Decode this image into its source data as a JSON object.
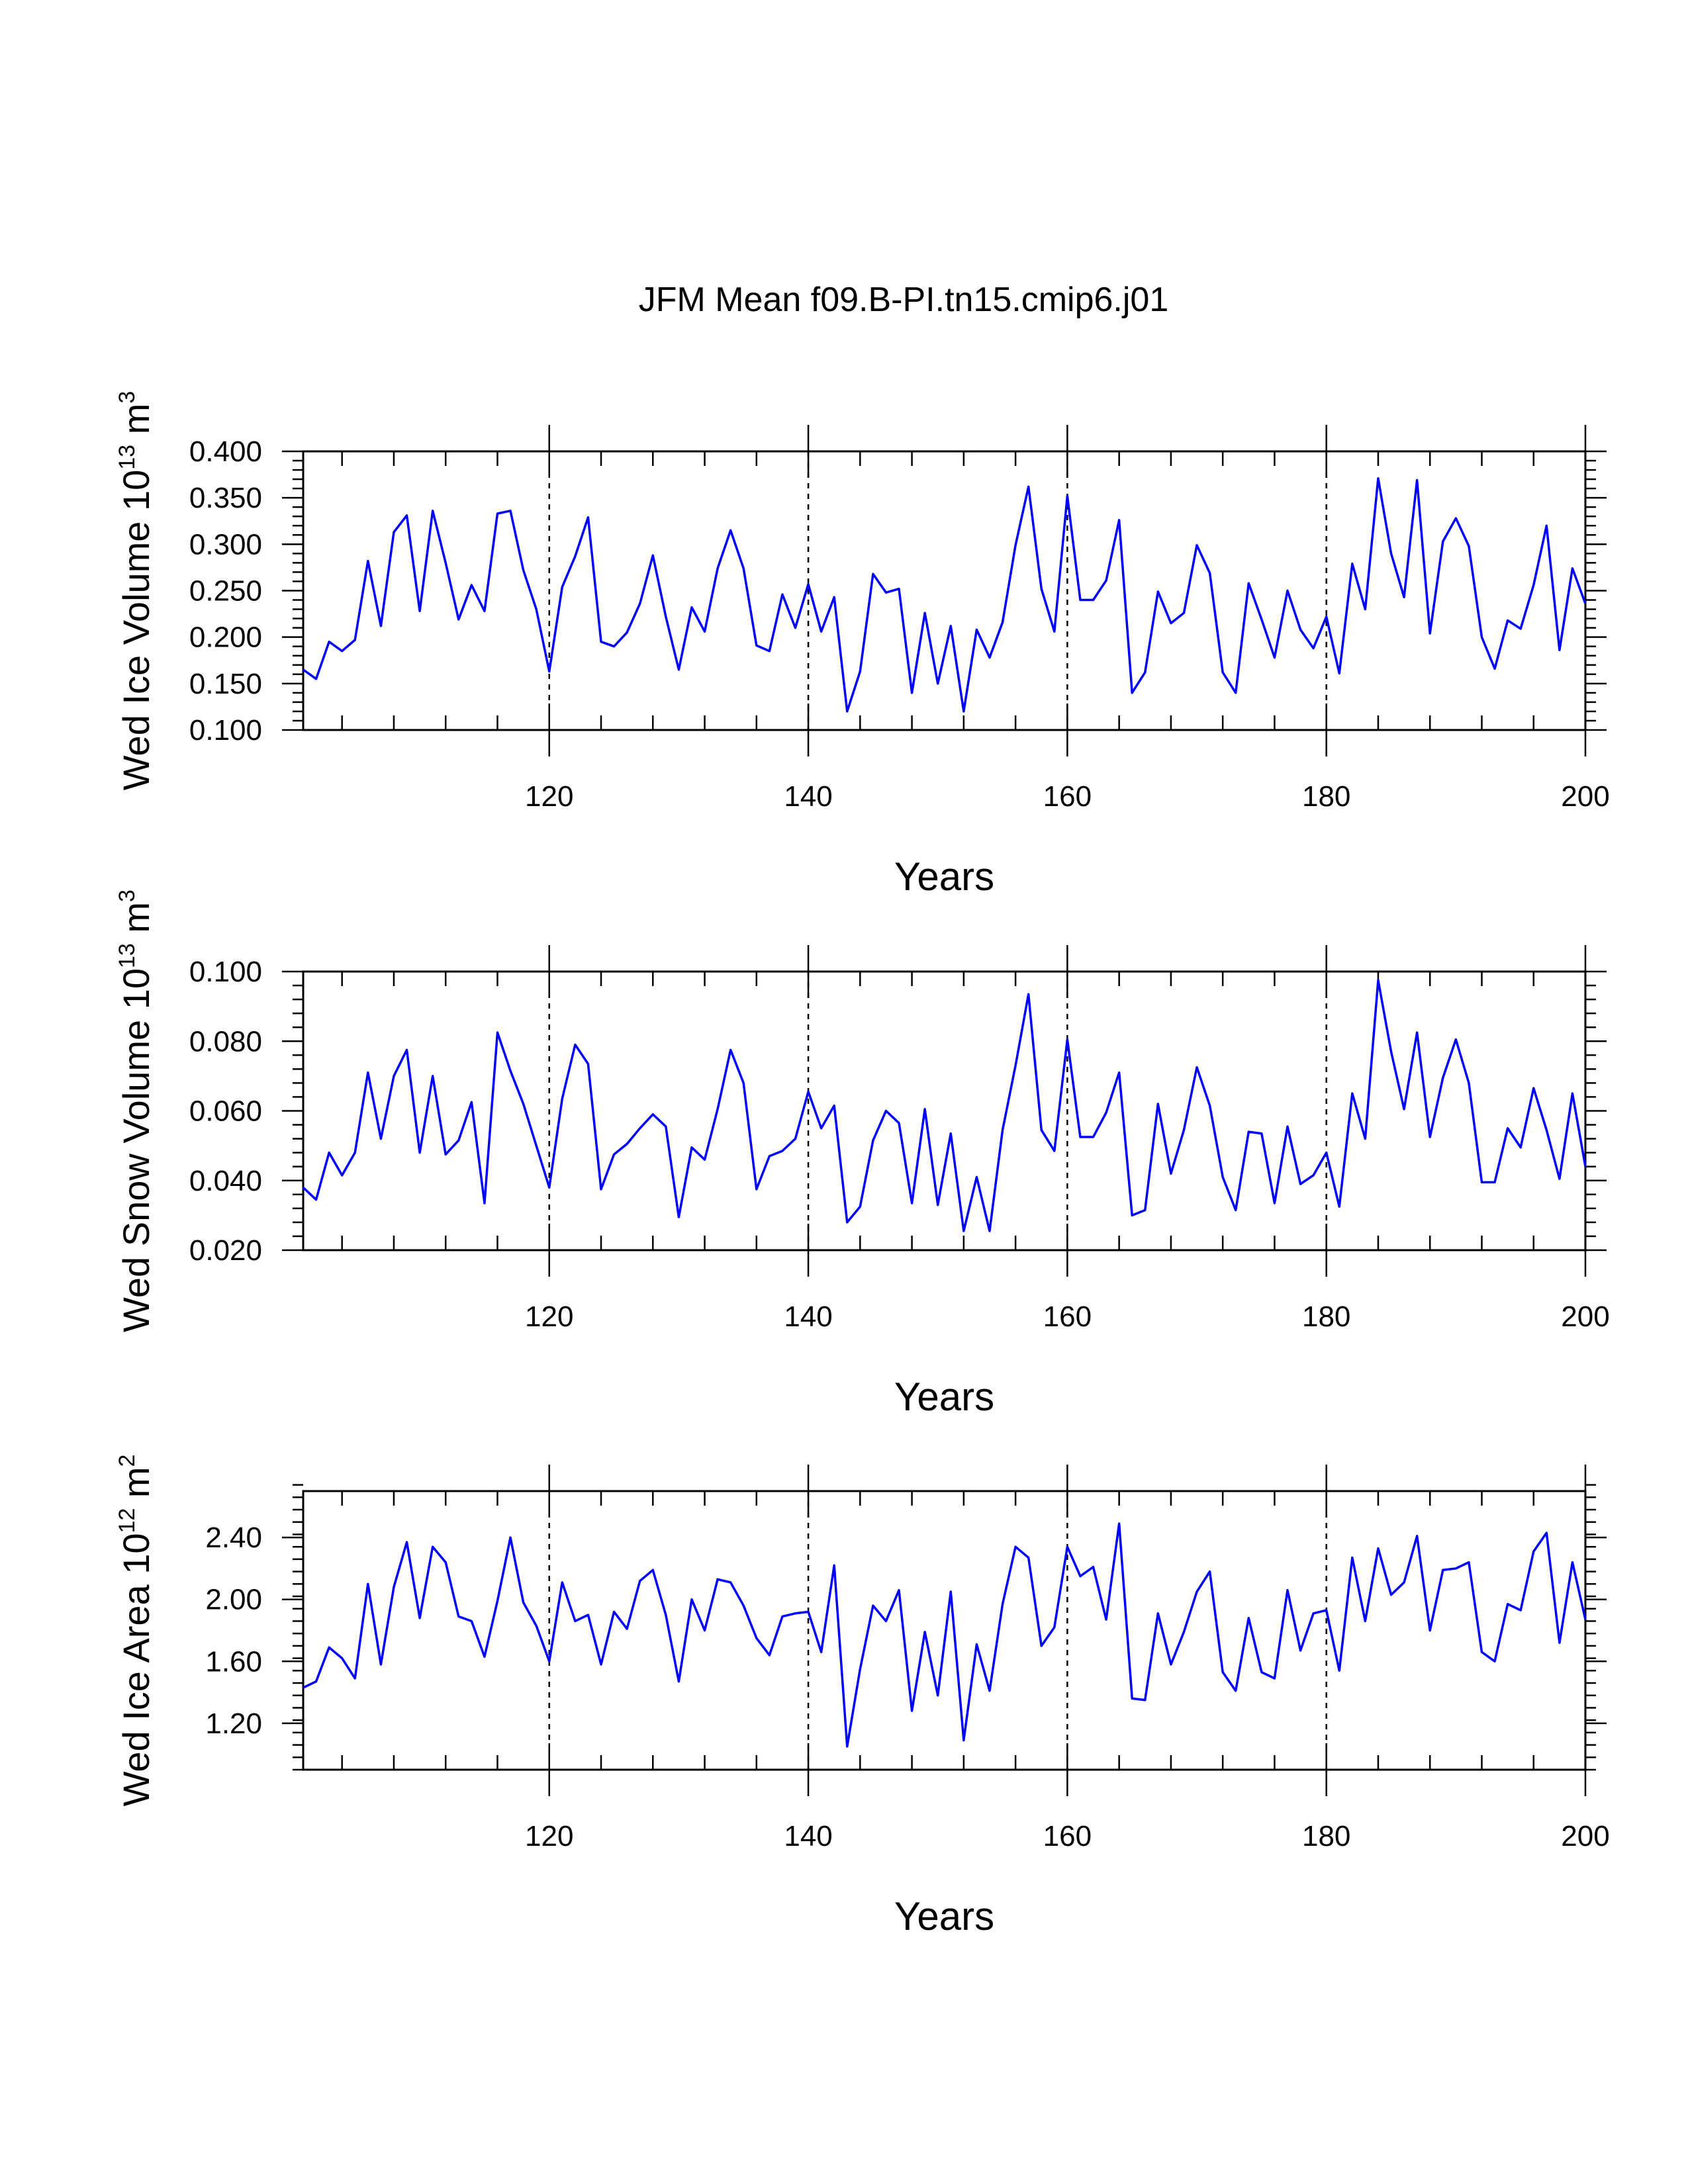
{
  "title": "JFM Mean f09.B-PI.tn15.cmip6.j01",
  "colors": {
    "line": "#0000ff",
    "axes": "#000000",
    "background": "#ffffff"
  },
  "chart_data": [
    {
      "id": "ice-volume",
      "type": "line",
      "ylabel_main": "Wed Ice Volume 10",
      "ylabel_exp": "13",
      "ylabel_unit": " m",
      "ylabel_unit_exp": "3",
      "xlabel": "Years",
      "xlim": [
        101,
        200
      ],
      "ylim": [
        0.1,
        0.4
      ],
      "yticks": [
        0.1,
        0.15,
        0.2,
        0.25,
        0.3,
        0.35,
        0.4
      ],
      "ytick_labels": [
        "0.100",
        "0.150",
        "0.200",
        "0.250",
        "0.300",
        "0.350",
        "0.400"
      ],
      "yminor_step": 0.01,
      "xticks": [
        120,
        140,
        160,
        180,
        200
      ],
      "xtick_labels": [
        "120",
        "140",
        "160",
        "180",
        "200"
      ],
      "xminor_step": 4,
      "vlines": [
        120,
        140,
        160,
        180
      ],
      "x_start": 101,
      "series": [
        {
          "name": "Wed Ice Volume",
          "values": [
            0.165,
            0.155,
            0.195,
            0.185,
            0.197,
            0.282,
            0.212,
            0.313,
            0.331,
            0.228,
            0.336,
            0.28,
            0.219,
            0.256,
            0.228,
            0.333,
            0.336,
            0.272,
            0.23,
            0.163,
            0.254,
            0.287,
            0.329,
            0.195,
            0.19,
            0.205,
            0.236,
            0.288,
            0.222,
            0.165,
            0.232,
            0.206,
            0.274,
            0.315,
            0.274,
            0.191,
            0.185,
            0.246,
            0.21,
            0.257,
            0.206,
            0.243,
            0.12,
            0.163,
            0.268,
            0.248,
            0.252,
            0.14,
            0.226,
            0.15,
            0.212,
            0.12,
            0.208,
            0.178,
            0.216,
            0.299,
            0.362,
            0.252,
            0.206,
            0.352,
            0.24,
            0.24,
            0.261,
            0.326,
            0.14,
            0.162,
            0.249,
            0.215,
            0.226,
            0.299,
            0.269,
            0.162,
            0.14,
            0.258,
            0.219,
            0.178,
            0.25,
            0.208,
            0.188,
            0.222,
            0.161,
            0.279,
            0.23,
            0.371,
            0.29,
            0.243,
            0.369,
            0.204,
            0.303,
            0.328,
            0.298,
            0.2,
            0.166,
            0.218,
            0.209,
            0.256,
            0.32,
            0.186,
            0.274,
            0.236
          ]
        }
      ]
    },
    {
      "id": "snow-volume",
      "type": "line",
      "ylabel_main": "Wed Snow Volume 10",
      "ylabel_exp": "13",
      "ylabel_unit": " m",
      "ylabel_unit_exp": "3",
      "xlabel": "Years",
      "xlim": [
        101,
        200
      ],
      "ylim": [
        0.02,
        0.1
      ],
      "yticks": [
        0.02,
        0.04,
        0.06,
        0.08,
        0.1
      ],
      "ytick_labels": [
        "0.020",
        "0.040",
        "0.060",
        "0.080",
        "0.100"
      ],
      "yminor_step": 0.004,
      "xticks": [
        120,
        140,
        160,
        180,
        200
      ],
      "xtick_labels": [
        "120",
        "140",
        "160",
        "180",
        "200"
      ],
      "xminor_step": 4,
      "vlines": [
        120,
        140,
        160,
        180
      ],
      "x_start": 101,
      "series": [
        {
          "name": "Wed Snow Volume",
          "values": [
            0.038,
            0.0345,
            0.048,
            0.0415,
            0.048,
            0.071,
            0.052,
            0.07,
            0.0775,
            0.048,
            0.07,
            0.0475,
            0.0515,
            0.0625,
            0.0335,
            0.0825,
            0.0715,
            0.062,
            0.05,
            0.038,
            0.0635,
            0.079,
            0.0735,
            0.0375,
            0.0475,
            0.0505,
            0.055,
            0.059,
            0.0555,
            0.0295,
            0.0495,
            0.046,
            0.0605,
            0.0775,
            0.068,
            0.0375,
            0.047,
            0.0485,
            0.052,
            0.0655,
            0.055,
            0.0615,
            0.028,
            0.0325,
            0.0515,
            0.06,
            0.0565,
            0.0335,
            0.0605,
            0.033,
            0.0535,
            0.0255,
            0.041,
            0.0255,
            0.0545,
            0.073,
            0.0935,
            0.0545,
            0.0485,
            0.0805,
            0.0525,
            0.0525,
            0.0595,
            0.071,
            0.03,
            0.0315,
            0.062,
            0.042,
            0.0545,
            0.0725,
            0.0615,
            0.041,
            0.0315,
            0.054,
            0.0535,
            0.0335,
            0.0555,
            0.039,
            0.0415,
            0.048,
            0.0325,
            0.065,
            0.052,
            0.0975,
            0.077,
            0.0605,
            0.0825,
            0.0525,
            0.0695,
            0.0805,
            0.068,
            0.0395,
            0.0395,
            0.055,
            0.0495,
            0.0665,
            0.0545,
            0.0405,
            0.065,
            0.044
          ]
        }
      ]
    },
    {
      "id": "ice-area",
      "type": "line",
      "ylabel_main": "Wed Ice Area 10",
      "ylabel_exp": "12",
      "ylabel_unit": " m",
      "ylabel_unit_exp": "2",
      "xlabel": "Years",
      "xlim": [
        101,
        200
      ],
      "ylim": [
        0.9,
        2.7
      ],
      "yticks": [
        1.2,
        1.6,
        2.0,
        2.4
      ],
      "ytick_labels": [
        "1.20",
        "1.60",
        "2.00",
        "2.40"
      ],
      "yminor_step": 0.08,
      "xticks": [
        120,
        140,
        160,
        180,
        200
      ],
      "xtick_labels": [
        "120",
        "140",
        "160",
        "180",
        "200"
      ],
      "xminor_step": 4,
      "vlines": [
        120,
        140,
        160,
        180
      ],
      "x_start": 101,
      "series": [
        {
          "name": "Wed Ice Area",
          "values": [
            1.43,
            1.47,
            1.69,
            1.62,
            1.49,
            2.1,
            1.58,
            2.08,
            2.37,
            1.88,
            2.34,
            2.24,
            1.89,
            1.86,
            1.63,
            1.99,
            2.4,
            1.98,
            1.83,
            1.6,
            2.11,
            1.86,
            1.9,
            1.58,
            1.92,
            1.81,
            2.12,
            2.19,
            1.9,
            1.47,
            2.0,
            1.8,
            2.13,
            2.11,
            1.96,
            1.75,
            1.64,
            1.89,
            1.91,
            1.92,
            1.66,
            2.22,
            1.05,
            1.55,
            1.96,
            1.86,
            2.06,
            1.28,
            1.79,
            1.38,
            2.05,
            1.09,
            1.71,
            1.41,
            1.97,
            2.34,
            2.27,
            1.7,
            1.82,
            2.34,
            2.15,
            2.21,
            1.87,
            2.49,
            1.36,
            1.35,
            1.91,
            1.58,
            1.79,
            2.05,
            2.18,
            1.53,
            1.41,
            1.88,
            1.53,
            1.49,
            2.06,
            1.67,
            1.91,
            1.93,
            1.54,
            2.27,
            1.86,
            2.33,
            2.03,
            2.11,
            2.41,
            1.8,
            2.19,
            2.2,
            2.24,
            1.66,
            1.6,
            1.97,
            1.93,
            2.31,
            2.43,
            1.72,
            2.24,
            1.87
          ]
        }
      ]
    }
  ]
}
